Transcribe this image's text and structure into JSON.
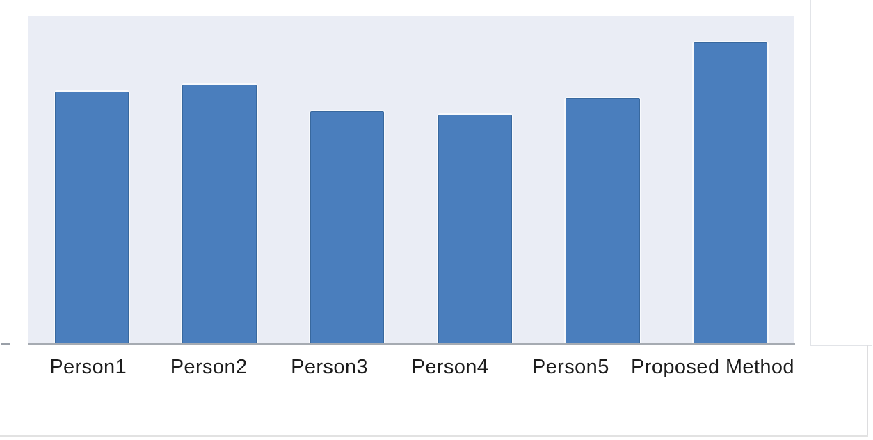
{
  "chart_data": {
    "type": "bar",
    "title": "",
    "xlabel": "",
    "ylabel": "",
    "categories": [
      "Person1",
      "Person2",
      "Person3",
      "Person4",
      "Person5",
      "Proposed Method"
    ],
    "values": [
      0.77,
      0.79,
      0.71,
      0.7,
      0.75,
      0.92
    ],
    "ylim": [
      0,
      1
    ],
    "value_scale": "relative bar height (no y-axis tick labels visible in figure)",
    "grid": false,
    "legend": false,
    "bar_width_fraction_of_slot": 0.58
  },
  "colors": {
    "bar_fill": "#4a7ebd",
    "bar_border": "#38689e",
    "bar_halo": "#f7f9fc",
    "plot_background": "#eaedf5",
    "axis_line": "#a6abb2",
    "tick": "#9aa0a8",
    "frame_line": "#e2e4e8",
    "label_text": "#1c1c1c",
    "page_background": "#ffffff"
  }
}
